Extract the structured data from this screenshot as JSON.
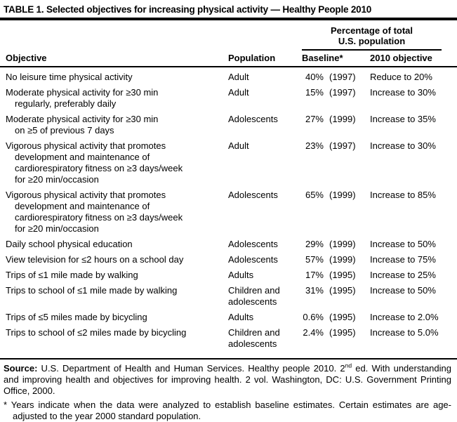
{
  "title": "TABLE 1. Selected objectives for increasing physical activity — Healthy People 2010",
  "colors": {
    "text": "#000000",
    "background": "#ffffff",
    "rule": "#000000"
  },
  "table": {
    "spanner_heading": "Percentage of total\nU.S. population",
    "columns": [
      "Objective",
      "Population",
      "Baseline*",
      "2010 objective"
    ],
    "rows": [
      {
        "objective": "No leisure time physical activity",
        "population": "Adult",
        "baseline_value": "40%",
        "baseline_year": "(1997)",
        "target": "Reduce to 20%"
      },
      {
        "objective": "Moderate physical activity for ≥30 min\nregularly, preferably daily",
        "population": "Adult",
        "baseline_value": "15%",
        "baseline_year": "(1997)",
        "target": "Increase to 30%"
      },
      {
        "objective": "Moderate physical activity for ≥30 min\non ≥5 of previous 7 days",
        "population": "Adolescents",
        "baseline_value": "27%",
        "baseline_year": "(1999)",
        "target": "Increase to 35%"
      },
      {
        "objective": "Vigorous physical activity that promotes\ndevelopment and maintenance of\ncardiorespiratory fitness on ≥3 days/week\nfor ≥20 min/occasion",
        "population": "Adult",
        "baseline_value": "23%",
        "baseline_year": "(1997)",
        "target": "Increase to 30%"
      },
      {
        "objective": "Vigorous physical activity that promotes\ndevelopment and maintenance of\ncardiorespiratory fitness on ≥3 days/week\nfor ≥20 min/occasion",
        "population": "Adolescents",
        "baseline_value": "65%",
        "baseline_year": "(1999)",
        "target": "Increase to 85%"
      },
      {
        "objective": "Daily school physical education",
        "population": "Adolescents",
        "baseline_value": "29%",
        "baseline_year": "(1999)",
        "target": "Increase to 50%"
      },
      {
        "objective": "View television for ≤2 hours on a school day",
        "population": "Adolescents",
        "baseline_value": "57%",
        "baseline_year": "(1999)",
        "target": "Increase to 75%"
      },
      {
        "objective": "Trips of ≤1 mile made by walking",
        "population": "Adults",
        "baseline_value": "17%",
        "baseline_year": "(1995)",
        "target": "Increase to 25%"
      },
      {
        "objective": "Trips to school of ≤1 mile made by walking",
        "population": "Children and adolescents",
        "baseline_value": "31%",
        "baseline_year": "(1995)",
        "target": "Increase to 50%"
      },
      {
        "objective": "Trips of ≤5 miles made by bicycling",
        "population": "Adults",
        "baseline_value": "0.6%",
        "baseline_year": "(1995)",
        "target": "Increase to 2.0%"
      },
      {
        "objective": "Trips to school of ≤2 miles made by bicycling",
        "population": "Children and adolescents",
        "baseline_value": "2.4%",
        "baseline_year": "(1995)",
        "target": "Increase to 5.0%"
      }
    ]
  },
  "source": {
    "label": "Source:",
    "before_sup": " U.S. Department of Health and Human Services. Healthy people 2010. 2",
    "sup": "nd",
    "after_sup": " ed. With understanding and improving health and objectives for improving health. 2 vol. Washington, DC: U.S. Government Printing Office, 2000."
  },
  "footnote": {
    "marker": "*",
    "text": "Years indicate when the data were analyzed to establish baseline estimates. Certain estimates are age-adjusted to the year 2000 standard population."
  }
}
